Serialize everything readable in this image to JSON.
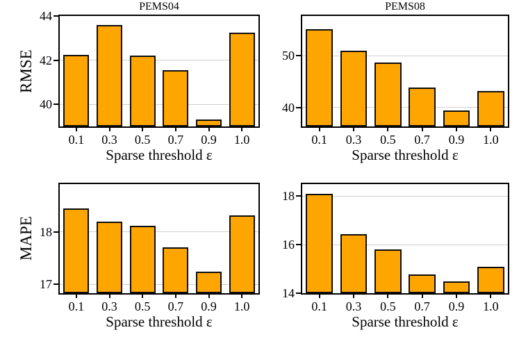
{
  "colors": {
    "bar_fill": "#FFA500",
    "bar_edge": "#0d0d0d",
    "gridline": "#cfcfcf",
    "spine": "#000000",
    "text": "#000000",
    "background": "#ffffff"
  },
  "chart_data": [
    {
      "type": "bar",
      "title": "PEMS04",
      "ylabel": "RMSE",
      "xlabel": "Sparse threshold ε",
      "categories": [
        "0.1",
        "0.3",
        "0.5",
        "0.7",
        "0.9",
        "1.0"
      ],
      "values": [
        42.25,
        43.6,
        42.2,
        41.55,
        39.3,
        43.25
      ],
      "ylim": [
        39.0,
        44.0
      ],
      "yticks": [
        40,
        42,
        44
      ],
      "grid": true,
      "legend_position": "none"
    },
    {
      "type": "bar",
      "title": "PEMS08",
      "ylabel": "",
      "xlabel": "Sparse threshold ε",
      "categories": [
        "0.1",
        "0.3",
        "0.5",
        "0.7",
        "0.9",
        "1.0"
      ],
      "values": [
        55.2,
        51.0,
        48.65,
        43.8,
        39.45,
        43.2
      ],
      "ylim": [
        36.3,
        57.7
      ],
      "yticks": [
        40,
        50
      ],
      "grid": true,
      "legend_position": "none"
    },
    {
      "type": "bar",
      "title": "",
      "ylabel": "MAPE",
      "xlabel": "Sparse threshold ε",
      "categories": [
        "0.1",
        "0.3",
        "0.5",
        "0.7",
        "0.9",
        "1.0"
      ],
      "values": [
        18.44,
        18.19,
        18.11,
        17.71,
        17.24,
        18.32
      ],
      "ylim": [
        16.83,
        18.91
      ],
      "yticks": [
        17,
        18
      ],
      "grid": true,
      "legend_position": "none"
    },
    {
      "type": "bar",
      "title": "",
      "ylabel": "",
      "xlabel": "Sparse threshold ε",
      "categories": [
        "0.1",
        "0.3",
        "0.5",
        "0.7",
        "0.9",
        "1.0"
      ],
      "values": [
        18.1,
        16.45,
        15.8,
        14.78,
        14.5,
        15.1
      ],
      "ylim": [
        14.0,
        18.5
      ],
      "yticks": [
        14,
        16,
        18
      ],
      "grid": true,
      "legend_position": "none"
    }
  ]
}
